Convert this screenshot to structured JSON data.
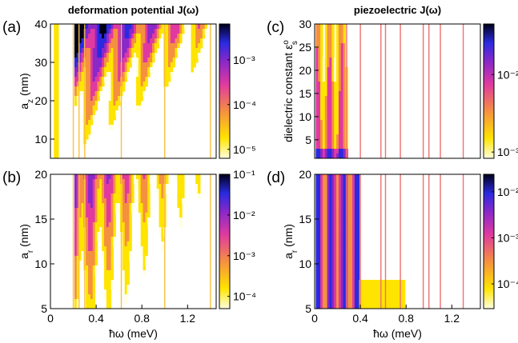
{
  "chart_data": [
    {
      "type": "heatmap",
      "panel": "(a)",
      "title": "deformation potential J(ω)",
      "ylabel": [
        {
          "text": "a"
        },
        {
          "text": "z",
          "shift": "sub"
        },
        {
          "text": " (nm)"
        }
      ],
      "xlim": [
        0,
        1.45
      ],
      "ylim": [
        5,
        40
      ],
      "yticks": [
        10,
        20,
        30,
        40
      ],
      "clim": [
        6.3e-06,
        0.0063
      ],
      "clog": true,
      "cticks": [
        {
          "value": 1e-05,
          "label": "10⁻⁵"
        },
        {
          "value": 0.0001,
          "label": "10⁻⁴"
        },
        {
          "value": 0.001,
          "label": "10⁻³"
        }
      ]
    },
    {
      "type": "heatmap",
      "panel": "(b)",
      "xlabel": "ħω (meV)",
      "ylabel": [
        {
          "text": "a"
        },
        {
          "text": "r",
          "shift": "sub"
        },
        {
          "text": " (nm)"
        }
      ],
      "xlim": [
        0,
        1.45
      ],
      "xticks": [
        0,
        0.4,
        0.8,
        1.2
      ],
      "ylim": [
        5,
        20
      ],
      "yticks": [
        5,
        10,
        15,
        20
      ],
      "clim": [
        5e-05,
        0.1
      ],
      "clog": true,
      "cticks": [
        {
          "value": 0.0001,
          "label": "10⁻⁴"
        },
        {
          "value": 0.001,
          "label": "10⁻³"
        },
        {
          "value": 0.01,
          "label": "10⁻²"
        },
        {
          "value": 0.1,
          "label": "10⁻¹"
        }
      ]
    },
    {
      "type": "heatmap",
      "panel": "(c)",
      "title": "piezoelectric J(ω)",
      "ylabel": [
        {
          "text": "dielectric constant ε"
        },
        {
          "text": "o",
          "shift": "super"
        },
        {
          "text": "s",
          "shift": "sub"
        }
      ],
      "xlim": [
        0,
        1.45
      ],
      "ylim": [
        1,
        30
      ],
      "yticks": [
        5,
        10,
        15,
        20,
        25,
        30
      ],
      "clim": [
        0.00083,
        0.045
      ],
      "clog": true,
      "cticks": [
        {
          "value": 0.001,
          "label": "10⁻³"
        },
        {
          "value": 0.01,
          "label": "10⁻²"
        }
      ]
    },
    {
      "type": "heatmap",
      "panel": "(d)",
      "xlabel": "ħω (meV)",
      "ylabel": [
        {
          "text": "a"
        },
        {
          "text": "r",
          "shift": "sub"
        },
        {
          "text": " (nm)"
        }
      ],
      "xlim": [
        0,
        1.45
      ],
      "xticks": [
        0,
        0.4,
        0.8,
        1.2
      ],
      "ylim": [
        5,
        20
      ],
      "yticks": [
        5,
        10,
        15,
        20
      ],
      "clim": [
        2.9e-05,
        0.024
      ],
      "clog": true,
      "cticks": [
        {
          "value": 0.0001,
          "label": "10⁻⁴"
        },
        {
          "value": 0.001,
          "label": "10⁻³"
        },
        {
          "value": 0.01,
          "label": "10⁻²"
        }
      ]
    }
  ]
}
